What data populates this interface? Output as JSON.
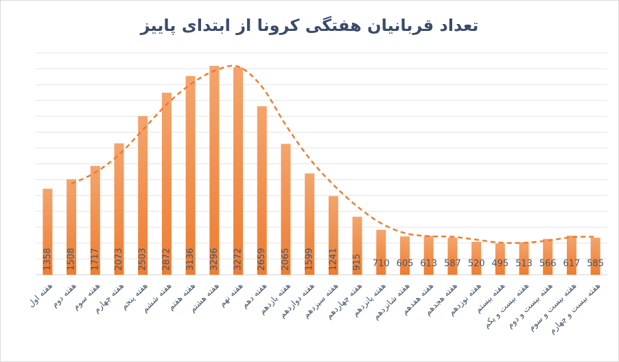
{
  "chart_data": {
    "type": "bar",
    "title": "تعداد قربانیان هفتگی کرونا از ابتدای پاییز",
    "categories": [
      "هفته اول",
      "هفته دوم",
      "هفته سوم",
      "هفته چهارم",
      "هفته پنجم",
      "هفته ششم",
      "هفته هفتم",
      "هفته هشتم",
      "هفته نهم",
      "هفته دهم",
      "هفته یازدهم",
      "هفته دوازدهم",
      "هفته سیزدهم",
      "هفته چهاردهم",
      "هفته پانزدهم",
      "هفته شانزدهم",
      "هفته هفدهم",
      "هفته هجدهم",
      "هفته نوزدهم",
      "هفته بیستم",
      "هفته بیست و یکم",
      "هفته بیست و دوم",
      "هفته بیست و سوم",
      "هفته بیست و چهارم"
    ],
    "values": [
      1358,
      1508,
      1717,
      2073,
      2503,
      2872,
      3136,
      3296,
      3272,
      2659,
      2065,
      1599,
      1241,
      915,
      710,
      605,
      613,
      587,
      520,
      495,
      513,
      566,
      617,
      585
    ],
    "color": "#ed7d31",
    "ylim": [
      0,
      3500
    ],
    "yticks": [
      0,
      250,
      500,
      750,
      1000,
      1250,
      1500,
      1750,
      2000,
      2250,
      2500,
      2750,
      3000,
      3250,
      3500
    ],
    "grid": true,
    "trendline": {
      "type": "moving_average",
      "period": 2,
      "color": "#ed7d31",
      "dashed": true
    }
  }
}
